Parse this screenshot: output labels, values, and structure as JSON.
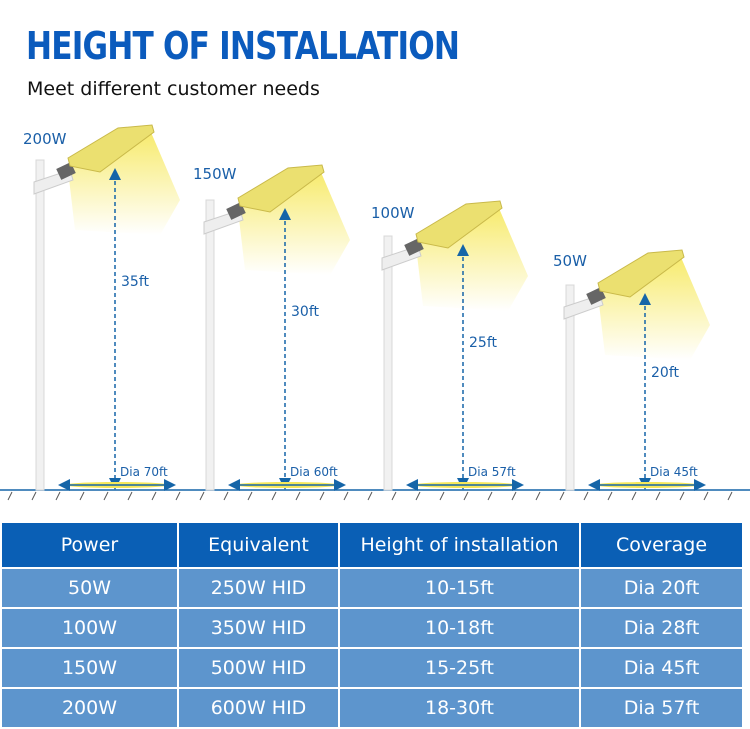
{
  "header": {
    "title": "HEIGHT OF INSTALLATION",
    "subtitle": "Meet different customer needs"
  },
  "colors": {
    "title": "#0b5bbd",
    "header_bg": "#0a5fb5",
    "row_bg": "#5d95cd",
    "light": "#f6e85a",
    "arrow": "#1565a8"
  },
  "lamps": [
    {
      "power": "200W",
      "height": "35ft",
      "diameter": "Dia 70ft"
    },
    {
      "power": "150W",
      "height": "30ft",
      "diameter": "Dia 60ft"
    },
    {
      "power": "100W",
      "height": "25ft",
      "diameter": "Dia 57ft"
    },
    {
      "power": "50W",
      "height": "20ft",
      "diameter": "Dia 45ft"
    }
  ],
  "table": {
    "headers": [
      "Power",
      "Equivalent",
      "Height of installation",
      "Coverage"
    ],
    "rows": [
      [
        "50W",
        "250W HID",
        "10-15ft",
        "Dia 20ft"
      ],
      [
        "100W",
        "350W HID",
        "10-18ft",
        "Dia 28ft"
      ],
      [
        "150W",
        "500W HID",
        "15-25ft",
        "Dia 45ft"
      ],
      [
        "200W",
        "600W HID",
        "18-30ft",
        "Dia 57ft"
      ]
    ]
  }
}
